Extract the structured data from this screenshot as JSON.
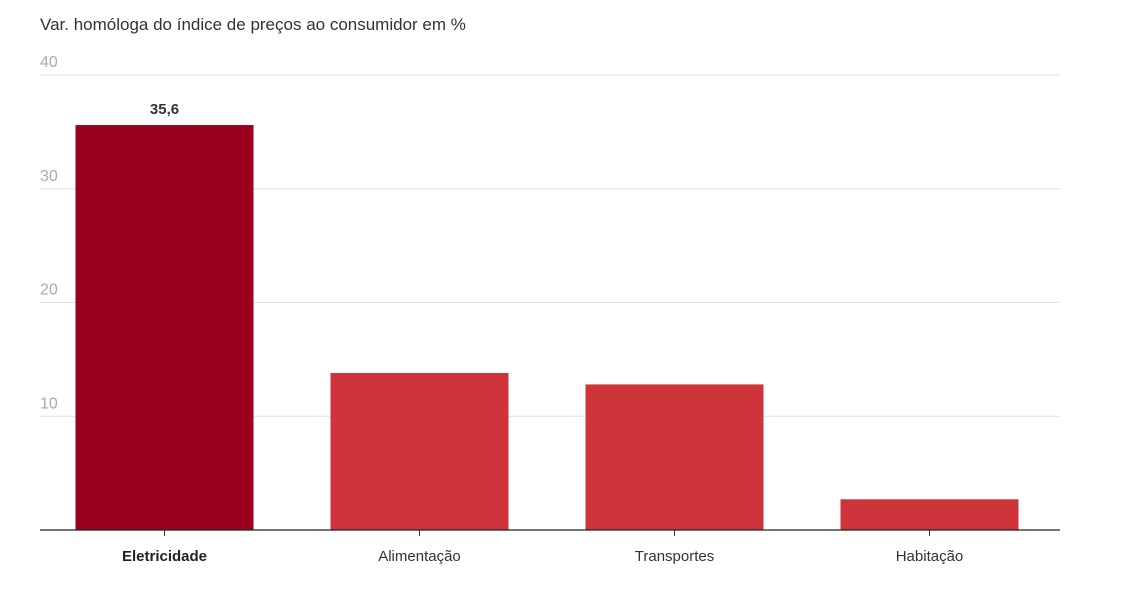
{
  "chart_data": {
    "type": "bar",
    "title": "Var. homóloga do índice de preços ao consumidor em %",
    "xlabel": "",
    "ylabel": "",
    "categories": [
      "Eletricidade",
      "Alimentação",
      "Transportes",
      "Habitação"
    ],
    "values": [
      35.6,
      13.8,
      12.8,
      2.7
    ],
    "ylim": [
      0,
      40
    ],
    "yticks": [
      "10",
      "20",
      "30",
      "40"
    ],
    "data_labels": [
      "35,6",
      "",
      "",
      ""
    ],
    "highlighted_category": "Eletricidade",
    "grid": true,
    "colors": {
      "highlight": "#9b001c",
      "default": "#d0343b"
    }
  }
}
